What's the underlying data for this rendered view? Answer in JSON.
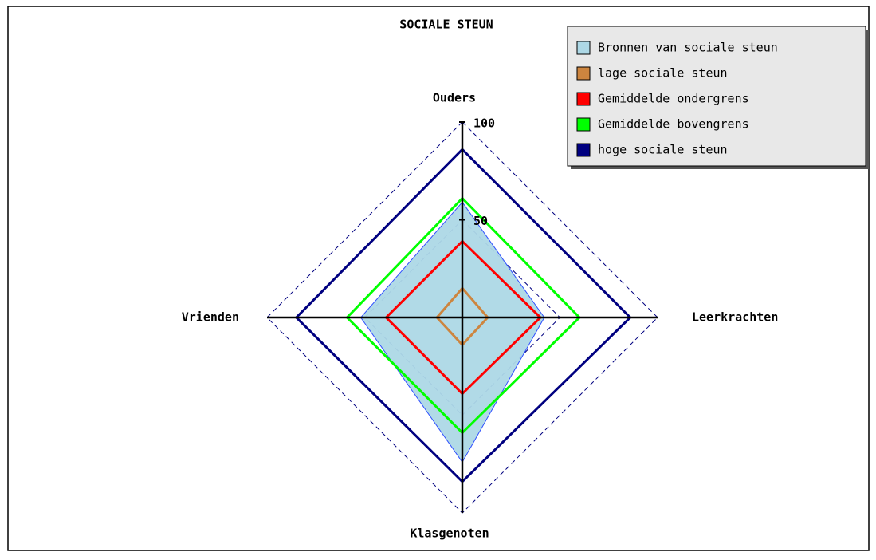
{
  "chart_data": {
    "type": "radar",
    "title": "SOCIALE STEUN",
    "categories": [
      "Ouders",
      "Leerkrachten",
      "Klasgenoten",
      "Vrienden"
    ],
    "rlim": [
      0,
      100
    ],
    "rticks": [
      50,
      100
    ],
    "grid": true,
    "legend": "top-right",
    "series": [
      {
        "name": "Bronnen van sociale steun",
        "color": "#add8e6",
        "values": [
          59,
          42,
          74,
          52
        ]
      },
      {
        "name": "lage sociale steun",
        "color": "#cd853f",
        "values": [
          15,
          13,
          14,
          13
        ]
      },
      {
        "name": "Gemiddelde ondergrens",
        "color": "#ff0000",
        "values": [
          39,
          40,
          39,
          39
        ]
      },
      {
        "name": "Gemiddelde bovengrens",
        "color": "#00ff00",
        "values": [
          61,
          60,
          59,
          59
        ]
      },
      {
        "name": "hoge sociale steun",
        "color": "#000080",
        "values": [
          86,
          86,
          84,
          85
        ]
      }
    ]
  }
}
